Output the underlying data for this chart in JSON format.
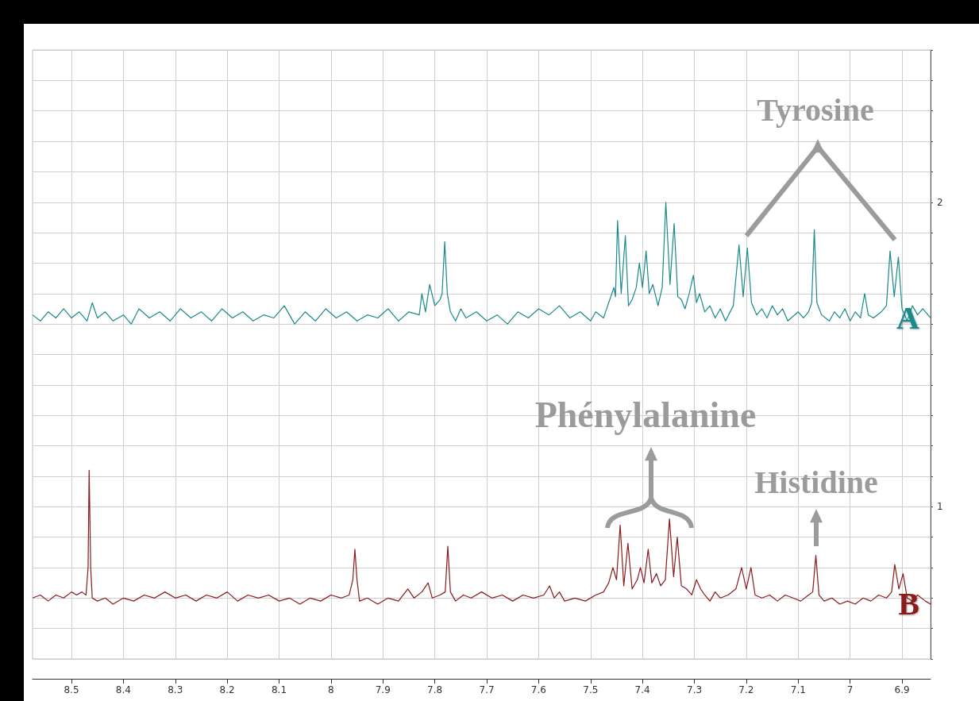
{
  "chart_data": {
    "type": "line",
    "xlim": [
      8.575,
      6.845
    ],
    "xticks": [
      8.5,
      8.4,
      8.3,
      8.2,
      8.1,
      8.0,
      7.9,
      7.8,
      7.7,
      7.6,
      7.5,
      7.4,
      7.3,
      7.2,
      7.1,
      7.0,
      6.9
    ],
    "ylim": [
      0.5,
      2.5
    ],
    "yticks": [
      {
        "value": 0.5,
        "label": null
      },
      {
        "value": 0.6,
        "label": null
      },
      {
        "value": 0.7,
        "label": null
      },
      {
        "value": 0.8,
        "label": null
      },
      {
        "value": 0.9,
        "label": null
      },
      1,
      {
        "value": 1.1,
        "label": null
      },
      {
        "value": 1.2,
        "label": null
      },
      {
        "value": 1.3,
        "label": null
      },
      {
        "value": 1.4,
        "label": null
      },
      {
        "value": 1.5,
        "label": null
      },
      {
        "value": 1.6,
        "label": null
      },
      {
        "value": 1.7,
        "label": null
      },
      {
        "value": 1.8,
        "label": null
      },
      {
        "value": 1.9,
        "label": null
      },
      2,
      {
        "value": 2.1,
        "label": null
      },
      {
        "value": 2.2,
        "label": null
      },
      {
        "value": 2.3,
        "label": null
      },
      {
        "value": 2.4,
        "label": null
      },
      {
        "value": 2.5,
        "label": null
      }
    ],
    "grid": true,
    "legend": false,
    "annotations": [
      "Tyrosine",
      "Phénylalanine",
      "Histidine"
    ],
    "series": [
      {
        "name": "A",
        "color": "#1a8a8a",
        "x": [
          8.575,
          8.56,
          8.545,
          8.53,
          8.515,
          8.5,
          8.485,
          8.47,
          8.46,
          8.45,
          8.435,
          8.42,
          8.4,
          8.385,
          8.37,
          8.35,
          8.33,
          8.31,
          8.29,
          8.27,
          8.25,
          8.23,
          8.21,
          8.19,
          8.17,
          8.15,
          8.13,
          8.11,
          8.09,
          8.07,
          8.05,
          8.03,
          8.01,
          7.99,
          7.97,
          7.95,
          7.93,
          7.91,
          7.89,
          7.87,
          7.85,
          7.83,
          7.825,
          7.818,
          7.81,
          7.8,
          7.79,
          7.786,
          7.781,
          7.776,
          7.77,
          7.76,
          7.75,
          7.74,
          7.72,
          7.7,
          7.68,
          7.66,
          7.64,
          7.62,
          7.6,
          7.58,
          7.56,
          7.54,
          7.52,
          7.5,
          7.49,
          7.475,
          7.465,
          7.455,
          7.452,
          7.448,
          7.441,
          7.433,
          7.427,
          7.42,
          7.412,
          7.406,
          7.4,
          7.393,
          7.387,
          7.38,
          7.37,
          7.362,
          7.355,
          7.347,
          7.339,
          7.332,
          7.325,
          7.318,
          7.31,
          7.302,
          7.296,
          7.29,
          7.28,
          7.27,
          7.26,
          7.25,
          7.24,
          7.225,
          7.214,
          7.206,
          7.198,
          7.19,
          7.18,
          7.17,
          7.16,
          7.15,
          7.14,
          7.13,
          7.12,
          7.1,
          7.09,
          7.08,
          7.074,
          7.069,
          7.064,
          7.055,
          7.04,
          7.03,
          7.02,
          7.01,
          7.0,
          6.99,
          6.98,
          6.972,
          6.965,
          6.955,
          6.94,
          6.93,
          6.923,
          6.915,
          6.907,
          6.9,
          6.89,
          6.88,
          6.87,
          6.86,
          6.845
        ],
        "values": [
          1.63,
          1.61,
          1.64,
          1.62,
          1.65,
          1.62,
          1.64,
          1.61,
          1.67,
          1.62,
          1.64,
          1.61,
          1.63,
          1.6,
          1.65,
          1.62,
          1.64,
          1.61,
          1.65,
          1.62,
          1.64,
          1.61,
          1.65,
          1.62,
          1.64,
          1.61,
          1.63,
          1.62,
          1.66,
          1.6,
          1.64,
          1.61,
          1.65,
          1.62,
          1.64,
          1.61,
          1.63,
          1.62,
          1.65,
          1.61,
          1.64,
          1.63,
          1.7,
          1.64,
          1.73,
          1.66,
          1.68,
          1.7,
          1.87,
          1.7,
          1.64,
          1.61,
          1.65,
          1.62,
          1.64,
          1.61,
          1.63,
          1.6,
          1.64,
          1.62,
          1.65,
          1.63,
          1.66,
          1.62,
          1.64,
          1.61,
          1.64,
          1.62,
          1.67,
          1.72,
          1.69,
          1.94,
          1.7,
          1.89,
          1.66,
          1.68,
          1.72,
          1.8,
          1.72,
          1.84,
          1.7,
          1.73,
          1.66,
          1.72,
          2.0,
          1.73,
          1.93,
          1.69,
          1.68,
          1.65,
          1.7,
          1.76,
          1.67,
          1.7,
          1.64,
          1.66,
          1.62,
          1.65,
          1.61,
          1.66,
          1.86,
          1.69,
          1.85,
          1.67,
          1.63,
          1.65,
          1.62,
          1.66,
          1.63,
          1.65,
          1.61,
          1.64,
          1.62,
          1.64,
          1.67,
          1.91,
          1.67,
          1.63,
          1.61,
          1.64,
          1.62,
          1.65,
          1.61,
          1.64,
          1.62,
          1.7,
          1.63,
          1.62,
          1.64,
          1.66,
          1.84,
          1.69,
          1.82,
          1.65,
          1.61,
          1.66,
          1.63,
          1.65,
          1.62
        ]
      },
      {
        "name": "B",
        "color": "#8b1a1a",
        "x": [
          8.575,
          8.56,
          8.545,
          8.53,
          8.515,
          8.5,
          8.49,
          8.48,
          8.472,
          8.468,
          8.466,
          8.463,
          8.46,
          8.45,
          8.435,
          8.42,
          8.4,
          8.38,
          8.36,
          8.34,
          8.32,
          8.3,
          8.28,
          8.26,
          8.24,
          8.22,
          8.2,
          8.18,
          8.16,
          8.14,
          8.12,
          8.1,
          8.08,
          8.06,
          8.04,
          8.02,
          8.0,
          7.98,
          7.965,
          7.958,
          7.954,
          7.95,
          7.945,
          7.93,
          7.91,
          7.89,
          7.87,
          7.852,
          7.84,
          7.825,
          7.813,
          7.805,
          7.79,
          7.78,
          7.775,
          7.77,
          7.76,
          7.745,
          7.73,
          7.71,
          7.69,
          7.67,
          7.65,
          7.63,
          7.61,
          7.59,
          7.579,
          7.57,
          7.56,
          7.55,
          7.53,
          7.51,
          7.49,
          7.475,
          7.465,
          7.457,
          7.45,
          7.443,
          7.436,
          7.428,
          7.42,
          7.41,
          7.404,
          7.397,
          7.389,
          7.382,
          7.373,
          7.365,
          7.356,
          7.348,
          7.34,
          7.333,
          7.325,
          7.315,
          7.305,
          7.296,
          7.288,
          7.28,
          7.27,
          7.26,
          7.25,
          7.235,
          7.22,
          7.209,
          7.2,
          7.191,
          7.183,
          7.17,
          7.155,
          7.14,
          7.125,
          7.11,
          7.095,
          7.08,
          7.072,
          7.066,
          7.06,
          7.05,
          7.035,
          7.02,
          7.005,
          6.99,
          6.975,
          6.96,
          6.945,
          6.93,
          6.92,
          6.914,
          6.906,
          6.898,
          6.89,
          6.88,
          6.87,
          6.855,
          6.845
        ],
        "values": [
          0.7,
          0.71,
          0.69,
          0.71,
          0.7,
          0.72,
          0.71,
          0.72,
          0.71,
          0.8,
          1.12,
          0.8,
          0.7,
          0.69,
          0.7,
          0.68,
          0.7,
          0.69,
          0.71,
          0.7,
          0.72,
          0.7,
          0.71,
          0.69,
          0.71,
          0.7,
          0.72,
          0.69,
          0.71,
          0.7,
          0.71,
          0.69,
          0.7,
          0.68,
          0.7,
          0.69,
          0.71,
          0.7,
          0.71,
          0.76,
          0.86,
          0.76,
          0.69,
          0.7,
          0.68,
          0.7,
          0.69,
          0.73,
          0.7,
          0.72,
          0.75,
          0.7,
          0.71,
          0.72,
          0.87,
          0.72,
          0.69,
          0.71,
          0.7,
          0.72,
          0.7,
          0.71,
          0.69,
          0.71,
          0.7,
          0.71,
          0.74,
          0.7,
          0.72,
          0.69,
          0.7,
          0.69,
          0.71,
          0.72,
          0.75,
          0.8,
          0.76,
          0.94,
          0.74,
          0.88,
          0.73,
          0.76,
          0.8,
          0.75,
          0.86,
          0.75,
          0.78,
          0.74,
          0.76,
          0.96,
          0.77,
          0.9,
          0.74,
          0.73,
          0.71,
          0.76,
          0.73,
          0.71,
          0.69,
          0.72,
          0.7,
          0.71,
          0.73,
          0.8,
          0.73,
          0.8,
          0.71,
          0.7,
          0.71,
          0.69,
          0.71,
          0.7,
          0.69,
          0.71,
          0.72,
          0.84,
          0.71,
          0.69,
          0.7,
          0.68,
          0.69,
          0.68,
          0.7,
          0.69,
          0.71,
          0.7,
          0.72,
          0.81,
          0.73,
          0.78,
          0.7,
          0.69,
          0.71,
          0.69,
          0.68
        ]
      }
    ]
  }
}
